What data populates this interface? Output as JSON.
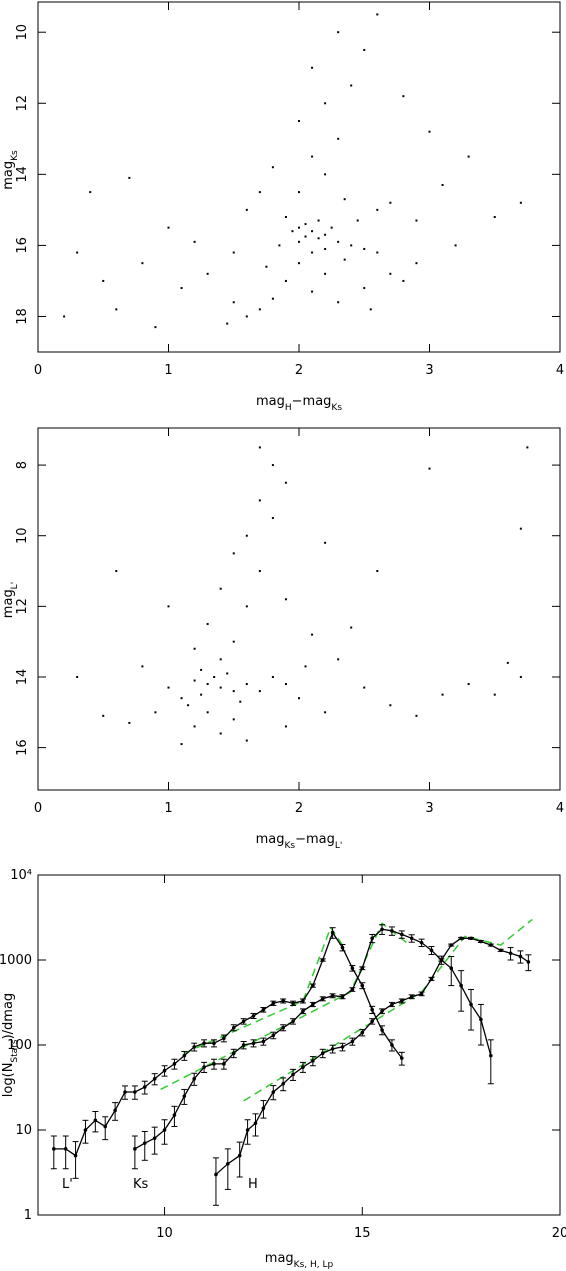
{
  "chart_data": [
    {
      "type": "scatter",
      "color": "#000000",
      "x_label": [
        {
          "text": "mag"
        },
        {
          "text": "H",
          "sub": true
        },
        {
          "text": "−mag"
        },
        {
          "text": "Ks",
          "sub": true
        }
      ],
      "y_label": [
        {
          "text": "mag"
        },
        {
          "text": "Ks",
          "sub": true
        }
      ],
      "xlim": [
        0,
        4
      ],
      "ylim": [
        19,
        9.15
      ],
      "xticks": [
        0,
        1,
        2,
        3,
        4
      ],
      "yticks": [
        10,
        12,
        14,
        16,
        18
      ],
      "x": [
        2.0,
        2.1,
        2.2,
        2.05,
        2.15,
        1.95,
        2.3,
        2.4,
        2.5,
        2.6,
        2.25,
        2.1,
        2.0,
        2.2,
        1.9,
        2.1,
        1.8,
        1.7,
        1.6,
        1.5,
        1.45,
        2.3,
        2.5,
        2.7,
        2.9,
        3.2,
        3.5,
        3.7,
        2.0,
        2.2,
        2.1,
        2.3,
        2.0,
        2.2,
        2.4,
        2.1,
        2.5,
        2.3,
        2.6,
        2.8,
        3.0,
        1.8,
        1.7,
        1.6,
        1.5,
        1.3,
        1.1,
        0.8,
        0.5,
        0.3,
        0.2,
        0.6,
        0.9,
        0.4,
        0.7,
        1.0,
        3.3,
        3.1,
        2.7,
        2.9,
        2.6,
        1.85,
        2.35,
        2.45,
        1.9,
        2.2,
        2.0,
        2.15,
        2.05,
        2.35,
        1.75,
        2.55,
        2.8,
        1.2
      ],
      "y": [
        15.5,
        15.6,
        15.7,
        15.4,
        15.8,
        15.6,
        15.9,
        16.0,
        16.1,
        16.2,
        15.5,
        16.2,
        16.5,
        16.8,
        17.0,
        17.3,
        17.5,
        17.8,
        18.0,
        17.6,
        18.2,
        17.6,
        17.2,
        16.8,
        16.5,
        16.0,
        15.2,
        14.8,
        14.5,
        14.0,
        13.5,
        13.0,
        12.5,
        12.0,
        11.5,
        11.0,
        10.5,
        10.0,
        9.5,
        11.8,
        12.8,
        13.8,
        14.5,
        15.0,
        16.2,
        16.8,
        17.2,
        16.5,
        17.0,
        16.2,
        18.0,
        17.8,
        18.3,
        14.5,
        14.1,
        15.5,
        13.5,
        14.3,
        14.8,
        15.3,
        15.0,
        16.0,
        16.4,
        15.3,
        15.2,
        16.1,
        15.9,
        15.3,
        15.75,
        14.7,
        16.6,
        17.8,
        17.0,
        15.9
      ]
    },
    {
      "type": "scatter",
      "color": "#000000",
      "x_label": [
        {
          "text": "mag"
        },
        {
          "text": "Ks",
          "sub": true
        },
        {
          "text": "−mag"
        },
        {
          "text": "L'",
          "sub": true
        }
      ],
      "y_label": [
        {
          "text": "mag"
        },
        {
          "text": "L'",
          "sub": true
        }
      ],
      "xlim": [
        0,
        4
      ],
      "ylim": [
        17.2,
        6.95
      ],
      "xticks": [
        0,
        1,
        2,
        3,
        4
      ],
      "yticks": [
        8,
        10,
        12,
        14,
        16
      ],
      "x": [
        1.3,
        1.4,
        1.2,
        1.5,
        1.35,
        1.25,
        1.45,
        1.1,
        1.6,
        1.7,
        1.0,
        1.8,
        1.9,
        2.0,
        1.3,
        1.2,
        1.4,
        1.1,
        1.5,
        1.6,
        1.9,
        2.2,
        0.9,
        0.7,
        0.5,
        0.3,
        1.4,
        1.5,
        1.3,
        1.6,
        1.4,
        1.7,
        1.5,
        1.6,
        1.8,
        1.7,
        1.9,
        1.8,
        1.7,
        2.1,
        2.3,
        2.5,
        2.7,
        2.9,
        3.1,
        3.3,
        3.5,
        3.7,
        3.75,
        3.7,
        3.0,
        2.6,
        2.2,
        1.2,
        1.0,
        0.8,
        1.15,
        1.55,
        1.25,
        2.05,
        2.4,
        3.6,
        0.6,
        1.9
      ],
      "y": [
        14.2,
        14.3,
        14.1,
        14.4,
        14.0,
        14.5,
        13.9,
        14.6,
        14.2,
        14.4,
        14.3,
        14.0,
        14.2,
        14.6,
        15.0,
        15.4,
        15.6,
        15.9,
        15.2,
        15.8,
        15.4,
        15.0,
        15.0,
        15.3,
        15.1,
        14.0,
        13.5,
        13.0,
        12.5,
        12.0,
        11.5,
        11.0,
        10.5,
        10.0,
        9.5,
        9.0,
        8.5,
        8.0,
        7.5,
        12.8,
        13.5,
        14.3,
        14.8,
        15.1,
        14.5,
        14.2,
        14.5,
        14.0,
        7.5,
        9.8,
        8.1,
        11.0,
        10.2,
        13.2,
        12.0,
        13.7,
        14.8,
        14.7,
        13.8,
        13.7,
        12.6,
        13.6,
        11.0,
        11.8
      ]
    },
    {
      "type": "errorline",
      "log_y": true,
      "color": "#000000",
      "x_label": [
        {
          "text": "mag"
        },
        {
          "text": "Ks, H, Lp",
          "sub": true
        }
      ],
      "y_label": [
        {
          "text": "log(N"
        },
        {
          "text": "Stars",
          "sub": true
        },
        {
          "text": ")/dmag"
        }
      ],
      "xlim": [
        6.8,
        20
      ],
      "ylim": [
        1,
        10000
      ],
      "xticks": [
        10,
        15,
        20
      ],
      "yticks": [
        1,
        10,
        100,
        1000,
        {
          "value": 10000,
          "label": "10⁴"
        }
      ],
      "series": [
        {
          "name": "L'",
          "x": [
            7.2,
            7.5,
            7.75,
            8.0,
            8.25,
            8.5,
            8.75,
            9.0,
            9.25,
            9.5,
            9.75,
            10.0,
            10.25,
            10.5,
            10.75,
            11.0,
            11.25,
            11.5,
            11.75,
            12.0,
            12.25,
            12.5,
            12.75,
            13.0,
            13.25,
            13.5,
            13.75,
            14.0,
            14.25,
            14.5,
            14.75,
            15.0,
            15.25,
            15.5,
            15.75,
            16.0
          ],
          "values": [
            6,
            6,
            5,
            10,
            13,
            11,
            17,
            28,
            28,
            32,
            40,
            50,
            60,
            75,
            95,
            105,
            105,
            120,
            160,
            190,
            220,
            260,
            310,
            330,
            310,
            330,
            500,
            1000,
            2100,
            1400,
            800,
            500,
            260,
            150,
            100,
            70
          ],
          "errors": [
            2.5,
            2.5,
            2.3,
            3,
            3.5,
            3.3,
            4,
            5,
            5,
            5.5,
            6,
            7,
            8,
            9,
            10,
            10,
            10,
            11,
            13,
            14,
            15,
            16,
            18,
            18,
            18,
            18,
            22,
            32,
            300,
            120,
            60,
            40,
            25,
            18,
            15,
            12
          ]
        },
        {
          "name": "Ks",
          "x": [
            9.25,
            9.5,
            9.75,
            10.0,
            10.25,
            10.5,
            10.75,
            11.0,
            11.25,
            11.5,
            11.75,
            12.0,
            12.25,
            12.5,
            12.75,
            13.0,
            13.25,
            13.5,
            13.75,
            14.0,
            14.25,
            14.5,
            14.75,
            15.0,
            15.25,
            15.5,
            15.75,
            16.0,
            16.25,
            16.5,
            16.75,
            17.0,
            17.25,
            17.5,
            17.75,
            18.0,
            18.25
          ],
          "values": [
            6,
            7,
            8,
            10,
            15,
            25,
            40,
            55,
            60,
            60,
            80,
            100,
            105,
            110,
            130,
            160,
            190,
            250,
            300,
            350,
            380,
            370,
            450,
            800,
            1800,
            2300,
            2200,
            2000,
            1800,
            1600,
            1300,
            1000,
            800,
            500,
            300,
            200,
            75
          ],
          "errors": [
            2.5,
            2.6,
            2.8,
            3.2,
            4,
            5,
            6.5,
            7.5,
            8,
            8,
            9,
            10,
            10,
            10.5,
            11.5,
            13,
            14,
            16,
            17,
            19,
            20,
            20,
            22,
            30,
            200,
            300,
            250,
            200,
            180,
            160,
            140,
            110,
            300,
            250,
            150,
            100,
            40
          ]
        },
        {
          "name": "H",
          "x": [
            11.3,
            11.6,
            11.9,
            12.1,
            12.3,
            12.5,
            12.75,
            13.0,
            13.25,
            13.5,
            13.75,
            14.0,
            14.25,
            14.5,
            14.75,
            15.0,
            15.25,
            15.5,
            15.75,
            16.0,
            16.25,
            16.5,
            16.75,
            17.0,
            17.25,
            17.5,
            17.75,
            18.0,
            18.25,
            18.5,
            18.75,
            19.0,
            19.2
          ],
          "values": [
            3,
            4,
            5,
            10,
            12,
            18,
            28,
            35,
            45,
            55,
            65,
            80,
            90,
            95,
            110,
            140,
            190,
            250,
            300,
            330,
            370,
            400,
            600,
            1000,
            1500,
            1800,
            1800,
            1650,
            1500,
            1300,
            1200,
            1100,
            950
          ],
          "errors": [
            1.7,
            2,
            2.2,
            3.2,
            3.5,
            4.2,
            5.3,
            6,
            6.7,
            7.4,
            8,
            9,
            9.5,
            9.7,
            10.5,
            12,
            14,
            16,
            17,
            18,
            19,
            20,
            25,
            32,
            40,
            45,
            45,
            42,
            40,
            36,
            200,
            180,
            200
          ]
        }
      ],
      "fit_color": "#33cc33",
      "fits": [
        {
          "x": [
            10.5,
            13.5,
            14.2,
            14.5
          ],
          "y": [
            80,
            330,
            2400,
            1500
          ]
        },
        {
          "x": [
            9.9,
            14.7,
            15.5,
            16.2
          ],
          "y": [
            30,
            420,
            2700,
            1500
          ]
        },
        {
          "x": [
            12.0,
            16.5,
            17.6,
            18.5,
            19.3
          ],
          "y": [
            22,
            420,
            1900,
            1500,
            3000
          ]
        }
      ]
    }
  ]
}
